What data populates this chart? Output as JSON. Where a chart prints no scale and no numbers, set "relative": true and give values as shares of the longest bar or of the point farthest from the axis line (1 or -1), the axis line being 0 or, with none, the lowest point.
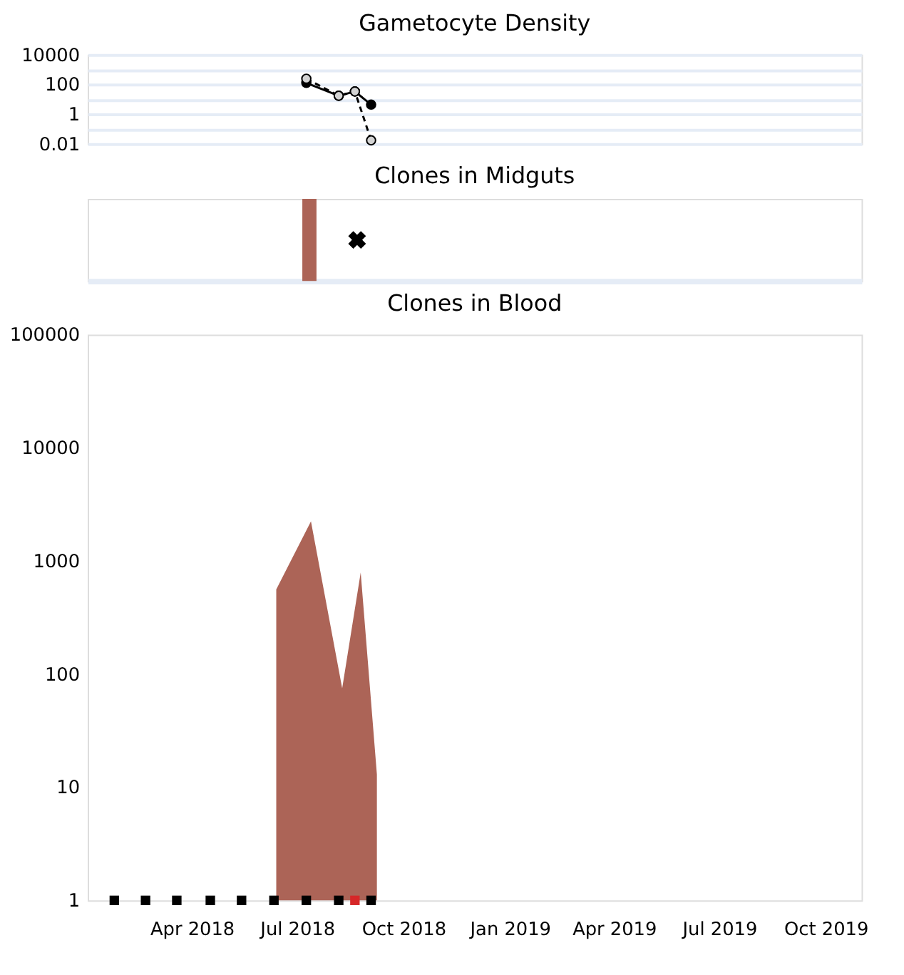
{
  "chart_data": [
    {
      "type": "line",
      "title": "Gametocyte Density",
      "log": true,
      "grid": true,
      "tick_labels": "y",
      "x": [
        "2018-07-09",
        "2018-08-06",
        "2018-08-20",
        "2018-09-03"
      ],
      "xlim": [
        "2018-01-01",
        "2019-11-01"
      ],
      "ylim": [
        0.01,
        10000
      ],
      "yticks": [
        10000,
        {
          "value": 1000,
          "label": null
        },
        100,
        {
          "value": 10,
          "label": null
        },
        1,
        {
          "value": 0.1,
          "label": null
        },
        0.01
      ],
      "series": [
        {
          "color": "#000000",
          "values": [
            125,
            17,
            33,
            4.3
          ],
          "marker": "circle",
          "line_style": "solid"
        },
        {
          "color": "#000000",
          "colors": [
            "#d3d3d3",
            "#d3d3d3",
            "#d3d3d3",
            "#d3d3d3"
          ],
          "values": [
            240,
            17,
            33,
            0.017
          ],
          "marker": "circle",
          "line_style": "dashed"
        }
      ]
    },
    {
      "type": "bar",
      "title": "Clones in Midguts",
      "relative": true,
      "tick_labels": false,
      "xlim": [
        "2018-01-01",
        "2019-11-01"
      ],
      "series": [
        {
          "type": "bar",
          "color": "#ac6457",
          "x": [
            "2018-07-09"
          ],
          "values": [
            1
          ]
        },
        {
          "type": "scatter",
          "color": "#000000",
          "x": [
            "2018-08-20"
          ],
          "values": [
            0.5
          ],
          "marker": "cross"
        }
      ]
    },
    {
      "type": "area",
      "title": "Clones in Blood",
      "log": true,
      "grid": false,
      "xlim": [
        "2018-01-01",
        "2019-11-01"
      ],
      "xticks": [
        {
          "value": "2018-04-01",
          "label": "Apr 2018"
        },
        {
          "value": "2018-07-01",
          "label": "Jul 2018"
        },
        {
          "value": "2018-10-01",
          "label": "Oct 2018"
        },
        {
          "value": "2019-01-01",
          "label": "Jan 2019"
        },
        {
          "value": "2019-04-01",
          "label": "Apr 2019"
        },
        {
          "value": "2019-07-01",
          "label": "Jul 2019"
        },
        {
          "value": "2019-10-01",
          "label": "Oct 2019"
        }
      ],
      "ylim": [
        1,
        100000
      ],
      "yticks": [
        1,
        10,
        100,
        1000,
        10000,
        100000
      ],
      "series": [
        {
          "type": "area",
          "color": "#ac6457",
          "x": [
            "2018-06-13",
            "2018-07-13",
            "2018-08-09",
            "2018-08-25",
            "2018-09-08"
          ],
          "values": [
            560,
            2240,
            75,
            790,
            13
          ]
        },
        {
          "type": "scatter",
          "marker": "square",
          "x": [
            "2018-01-24",
            "2018-02-20",
            "2018-03-19",
            "2018-04-17",
            "2018-05-14",
            "2018-06-11",
            "2018-07-09",
            "2018-08-06",
            "2018-08-20",
            "2018-09-03"
          ],
          "values": [
            1,
            1,
            1,
            1,
            1,
            1,
            1,
            1,
            1,
            1
          ],
          "colors": [
            "#000000",
            "#000000",
            "#000000",
            "#000000",
            "#000000",
            "#000000",
            "#000000",
            "#000000",
            "#d62728",
            "#000000"
          ]
        }
      ]
    }
  ]
}
